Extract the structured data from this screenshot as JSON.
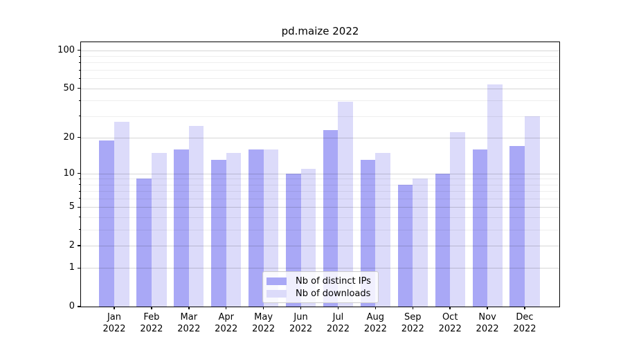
{
  "figure": {
    "title": "pd.maize 2022"
  },
  "chart_data": {
    "type": "bar",
    "title": "pd.maize 2022",
    "xlabel": "",
    "ylabel": "",
    "yscale": "log1p",
    "ylim": [
      0,
      116
    ],
    "yticks_major": [
      0,
      1,
      2,
      5,
      10,
      20,
      50,
      100
    ],
    "yticks_minor": [
      3,
      4,
      6,
      7,
      8,
      9,
      30,
      40,
      60,
      70,
      80,
      90
    ],
    "grid": "horizontal",
    "legend_position": "lower center",
    "months": [
      "Jan",
      "Feb",
      "Mar",
      "Apr",
      "May",
      "Jun",
      "Jul",
      "Aug",
      "Sep",
      "Oct",
      "Nov",
      "Dec"
    ],
    "year": "2022",
    "series": [
      {
        "name": "Nb of distinct IPs",
        "color": "#a9a8f6",
        "values": [
          19,
          9,
          16,
          13,
          16,
          10,
          23,
          13,
          8,
          10,
          16,
          17
        ]
      },
      {
        "name": "Nb of downloads",
        "color": "#dcdbfa",
        "values": [
          27,
          15,
          25,
          15,
          16,
          11,
          39,
          15,
          9,
          22,
          54,
          30
        ]
      }
    ]
  }
}
